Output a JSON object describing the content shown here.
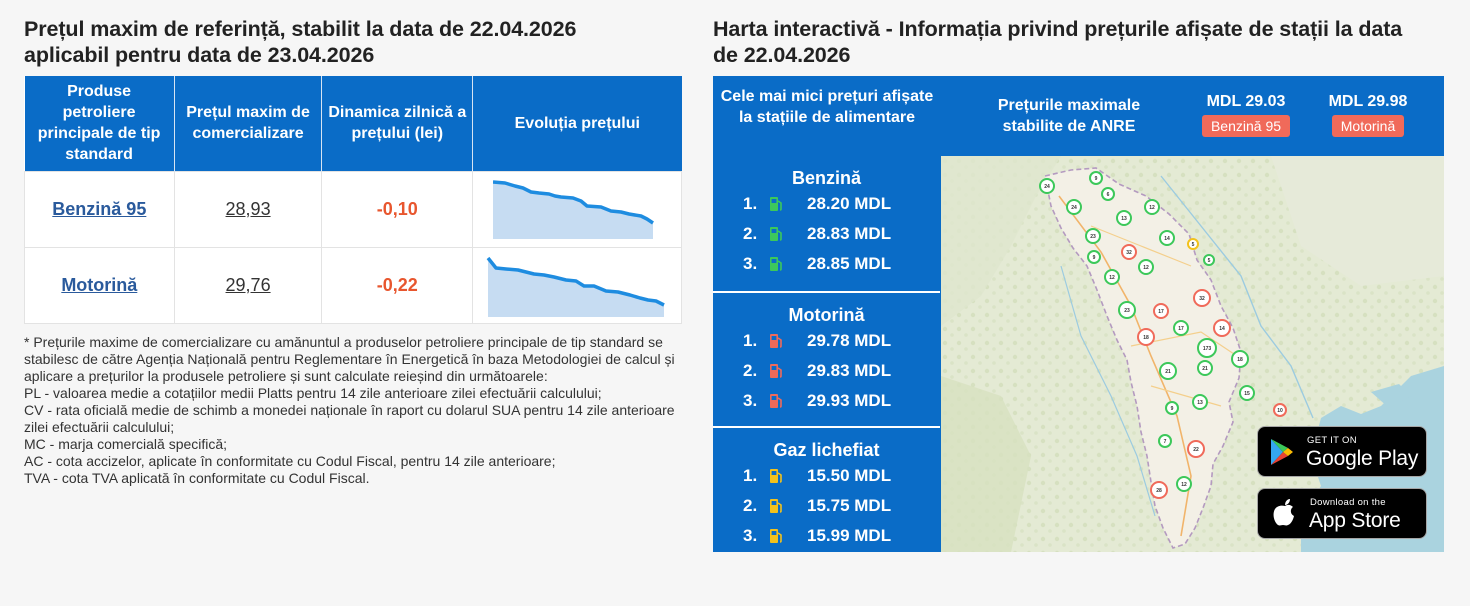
{
  "left": {
    "title_line1": "Prețul maxim de referință, stabilit la data de 22.04.2026",
    "title_line2": "aplicabil pentru data de 23.04.2026",
    "table": {
      "headers": [
        "Produse petroliere principale de tip standard",
        "Prețul maxim de comercializare",
        "Dinamica zilnică a prețului (lei)",
        "Evoluția prețului"
      ],
      "rows": [
        {
          "product": "Benzină 95",
          "price": "28,93",
          "delta": "-0,10"
        },
        {
          "product": "Motorină",
          "price": "29,76",
          "delta": "-0,22"
        }
      ]
    },
    "notes": [
      "* Prețurile maxime de comercializare cu amănuntul a produselor petroliere principale de tip standard se stabilesc de către Agenția Națională pentru Reglementare în Energetică în baza Metodologiei de calcul și aplicare a prețurilor la produsele petroliere și sunt calculate reieșind din următoarele:",
      "PL - valoarea medie a cotațiilor medii Platts pentru 14 zile anterioare zilei efectuării calculului;",
      "CV - rata oficială medie de schimb a monedei naționale în raport cu dolarul SUA pentru 14 zile anterioare zilei efectuării calculului;",
      "MC - marja comercială specifică;",
      "AC - cota accizelor, aplicate în conformitate cu Codul Fiscal, pentru 14 zile anterioare;",
      "TVA - cota TVA aplicată în conformitate cu Codul Fiscal."
    ]
  },
  "right": {
    "title_line1": "Harta interactivă - Informația privind prețurile afișate de stații la data",
    "title_line2": "de 22.04.2026",
    "lowest_title": "Cele mai mici prețuri afișate la stațiile de alimentare",
    "max_title": "Prețurile maximale stabilite de ANRE",
    "max_prices": [
      {
        "value": "MDL 29.03",
        "label": "Benzină 95"
      },
      {
        "value": "MDL 29.98",
        "label": "Motorină"
      }
    ],
    "fuels": [
      {
        "name": "Benzină",
        "color": "#3cc85a",
        "prices": [
          {
            "rank": "1.",
            "value": "28.20 MDL"
          },
          {
            "rank": "2.",
            "value": "28.83 MDL"
          },
          {
            "rank": "3.",
            "value": "28.85 MDL"
          }
        ]
      },
      {
        "name": "Motorină",
        "color": "#f06a5a",
        "prices": [
          {
            "rank": "1.",
            "value": "29.78 MDL"
          },
          {
            "rank": "2.",
            "value": "29.83 MDL"
          },
          {
            "rank": "3.",
            "value": "29.93 MDL"
          }
        ]
      },
      {
        "name": "Gaz lichefiat",
        "color": "#f3c21c",
        "prices": [
          {
            "rank": "1.",
            "value": "15.50 MDL"
          },
          {
            "rank": "2.",
            "value": "15.75 MDL"
          },
          {
            "rank": "3.",
            "value": "15.99 MDL"
          }
        ]
      }
    ],
    "map_markers": [
      "24",
      "9",
      "6",
      "24",
      "13",
      "12",
      "14",
      "23",
      "32",
      "5",
      "9",
      "12",
      "12",
      "32",
      "5",
      "23",
      "17",
      "18",
      "17",
      "14",
      "173",
      "21",
      "18",
      "21",
      "15",
      "9",
      "13",
      "10",
      "7",
      "22",
      "28",
      "12"
    ],
    "google_play": {
      "small": "GET IT ON",
      "big": "Google Play"
    },
    "app_store": {
      "small": "Download on the",
      "big": "App Store"
    }
  }
}
